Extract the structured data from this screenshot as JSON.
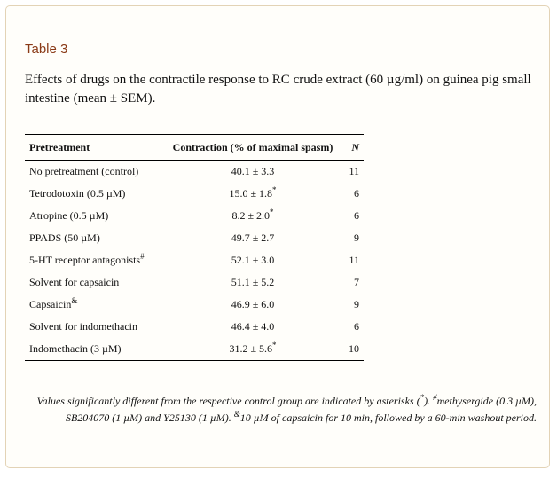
{
  "table_label": "Table 3",
  "caption": "Effects of drugs on the contractile response to RC crude extract (60 µg/ml) on guinea pig small intestine (mean ± SEM).",
  "columns": [
    "Pretreatment",
    "Contraction (% of maximal spasm)",
    "N"
  ],
  "rows": [
    {
      "pretreatment": "No pretreatment (control)",
      "pre_mark": "",
      "contraction": "40.1 ± 3.3",
      "contraction_mark": "",
      "n": "11"
    },
    {
      "pretreatment": "Tetrodotoxin (0.5 µM)",
      "pre_mark": "",
      "contraction": "15.0 ± 1.8",
      "contraction_mark": "*",
      "n": "6"
    },
    {
      "pretreatment": "Atropine (0.5 µM)",
      "pre_mark": "",
      "contraction": "8.2 ± 2.0",
      "contraction_mark": "*",
      "n": "6"
    },
    {
      "pretreatment": "PPADS (50 µM)",
      "pre_mark": "",
      "contraction": "49.7 ± 2.7",
      "contraction_mark": "",
      "n": "9"
    },
    {
      "pretreatment": "5-HT receptor antagonists",
      "pre_mark": "#",
      "contraction": "52.1 ± 3.0",
      "contraction_mark": "",
      "n": "11"
    },
    {
      "pretreatment": "Solvent for capsaicin",
      "pre_mark": "",
      "contraction": "51.1 ± 5.2",
      "contraction_mark": "",
      "n": "7"
    },
    {
      "pretreatment": "Capsaicin",
      "pre_mark": "&",
      "contraction": "46.9 ± 6.0",
      "contraction_mark": "",
      "n": "9"
    },
    {
      "pretreatment": "Solvent for indomethacin",
      "pre_mark": "",
      "contraction": "46.4 ± 4.0",
      "contraction_mark": "",
      "n": "6"
    },
    {
      "pretreatment": "Indomethacin (3 µM)",
      "pre_mark": "",
      "contraction": "31.2 ± 5.6",
      "contraction_mark": "*",
      "n": "10"
    }
  ],
  "footnote": {
    "part1": "Values significantly different from the respective control group are indicated by asterisks (",
    "asterisk": "*",
    "part2": "). ",
    "hash": "#",
    "part3": "methysergide (0.3 µM), SB204070 (1 µM) and Y25130 (1 µM). ",
    "amp": "&",
    "part4": "10 µM of capsaicin for 10 min, followed by a 60-min washout period."
  },
  "colors": {
    "label": "#8a3a17",
    "border": "#e3d3b6",
    "panel_bg": "#fffefa"
  }
}
